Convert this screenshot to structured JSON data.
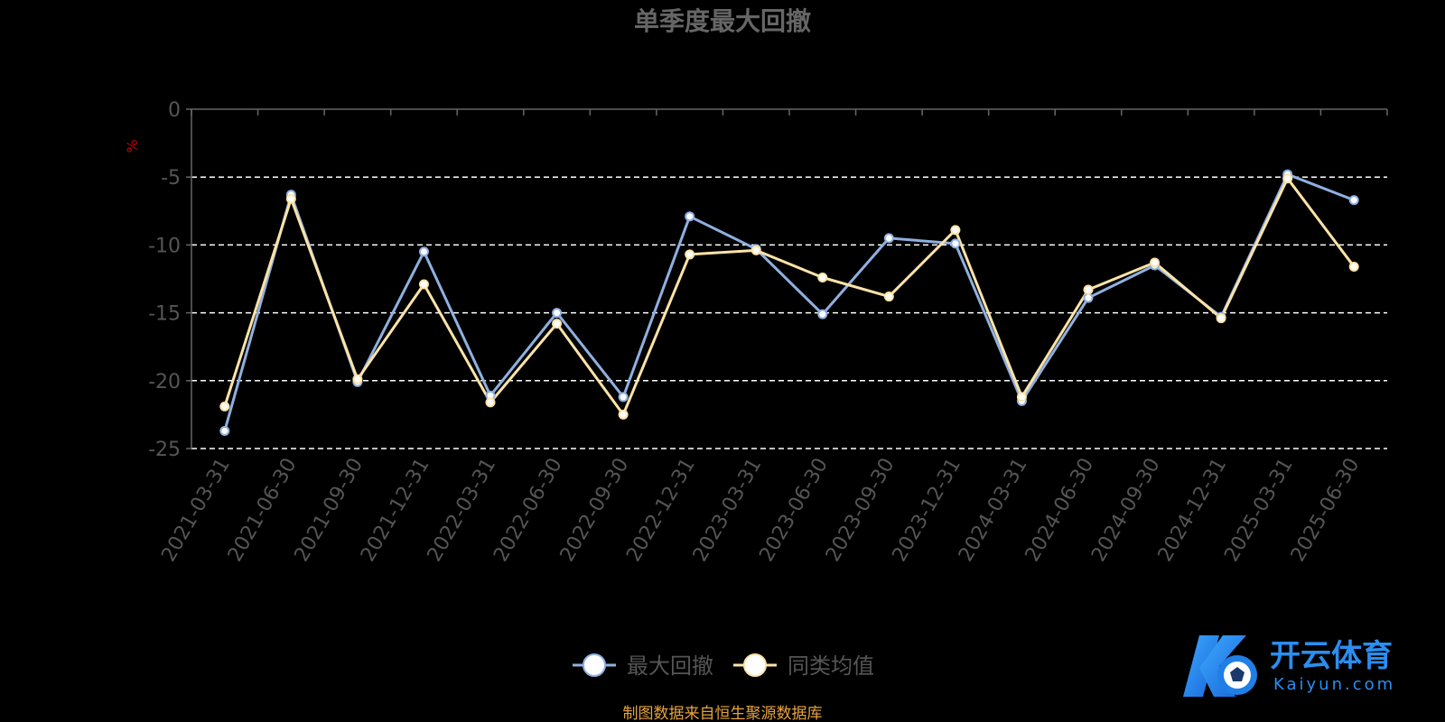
{
  "chart_data": {
    "type": "line",
    "title": "单季度最大回撤",
    "ylabel": "%",
    "ylim": [
      -25,
      0
    ],
    "yticks": [
      0,
      -5,
      -10,
      -15,
      -20,
      -25
    ],
    "categories": [
      "2021-03-31",
      "2021-06-30",
      "2021-09-30",
      "2021-12-31",
      "2022-03-31",
      "2022-06-30",
      "2022-09-30",
      "2022-12-31",
      "2023-03-31",
      "2023-06-30",
      "2023-09-30",
      "2023-12-31",
      "2024-03-31",
      "2024-06-30",
      "2024-09-30",
      "2024-12-31",
      "2025-03-31",
      "2025-06-30"
    ],
    "series": [
      {
        "name": "最大回撤",
        "color": "#8fb0e0",
        "values": [
          -23.7,
          -6.3,
          -20.1,
          -10.5,
          -21.1,
          -15.0,
          -21.2,
          -7.9,
          -10.3,
          -15.1,
          -9.5,
          -9.9,
          -21.5,
          -13.9,
          -11.5,
          -15.3,
          -4.8,
          -6.7
        ]
      },
      {
        "name": "同类均值",
        "color": "#fde3a7",
        "values": [
          -21.9,
          -6.6,
          -19.9,
          -12.9,
          -21.6,
          -15.8,
          -22.5,
          -10.7,
          -10.4,
          -12.4,
          -13.8,
          -8.9,
          -21.2,
          -13.3,
          -11.3,
          -15.4,
          -5.1,
          -11.6
        ]
      }
    ],
    "grid": true,
    "legend_position": "bottom-center"
  },
  "footer": {
    "source": "制图数据来自恒生聚源数据库"
  },
  "watermark": {
    "brand_cn": "开云体育",
    "brand_en": "Kaiyun.com"
  },
  "colors": {
    "axis": "#666666",
    "tick_label": "#555555",
    "grid": "#ffffff",
    "ylabel": "#c00000",
    "source": "#e7a33e"
  }
}
